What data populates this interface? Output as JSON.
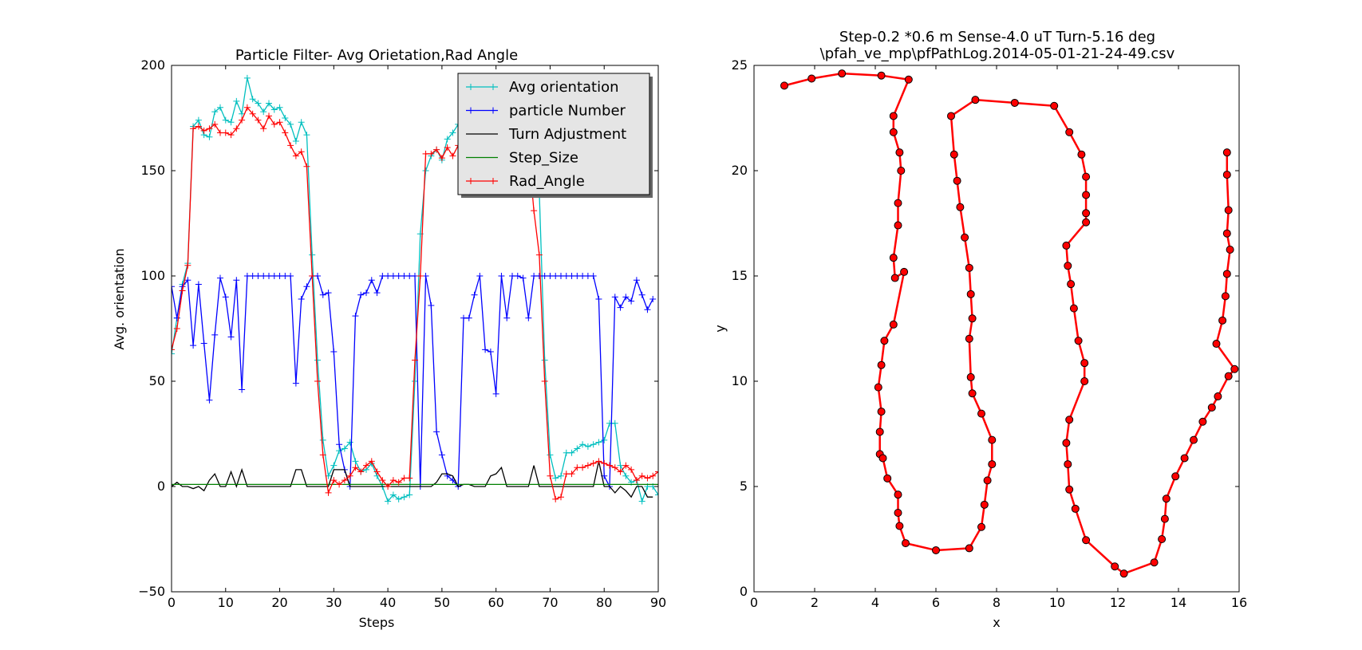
{
  "chart_data": [
    {
      "type": "line",
      "title": "Particle Filter- Avg Orietation,Rad Angle",
      "xlabel": "Steps",
      "ylabel": "Avg. orientation",
      "xlim": [
        0,
        90
      ],
      "ylim": [
        -50,
        200
      ],
      "xticks": [
        "0",
        "10",
        "20",
        "30",
        "40",
        "50",
        "60",
        "70",
        "80",
        "90"
      ],
      "yticks": [
        "−50",
        "0",
        "50",
        "100",
        "150",
        "200"
      ],
      "grid": false,
      "legend": "top-right",
      "series": [
        {
          "name": "Avg orientation",
          "color": "#00bfbf",
          "marker": "+",
          "values": [
            63,
            80,
            96,
            106,
            171,
            174,
            167,
            166,
            178,
            180,
            174,
            173,
            183,
            177,
            194,
            184,
            182,
            178,
            182,
            179,
            180,
            175,
            172,
            164,
            173,
            167,
            110,
            60,
            22,
            5,
            10,
            17,
            18,
            21,
            12,
            7,
            8,
            11,
            5,
            0,
            -7,
            -4,
            -6,
            -5,
            -4,
            50,
            120,
            150,
            157,
            160,
            155,
            165,
            168,
            172,
            178,
            180,
            180,
            180,
            180,
            180,
            180,
            180,
            180,
            180,
            180,
            180,
            175,
            150,
            140,
            60,
            15,
            4,
            5,
            16,
            16,
            18,
            20,
            19,
            20,
            21,
            22,
            30,
            30,
            10,
            5,
            2,
            3,
            -7,
            0,
            0,
            -4
          ]
        },
        {
          "name": "particle Number",
          "color": "#0000ff",
          "marker": "+",
          "values": [
            95,
            80,
            95,
            98,
            67,
            96,
            68,
            41,
            72,
            99,
            90,
            71,
            98,
            46,
            100,
            100,
            100,
            100,
            100,
            100,
            100,
            100,
            100,
            49,
            89,
            95,
            100,
            100,
            91,
            92,
            64,
            20,
            8,
            0,
            81,
            91,
            92,
            98,
            92,
            100,
            100,
            100,
            100,
            100,
            100,
            100,
            0,
            100,
            86,
            26,
            15,
            5,
            3,
            0,
            80,
            80,
            91,
            100,
            65,
            64,
            44,
            100,
            80,
            100,
            100,
            99,
            80,
            100,
            100,
            100,
            100,
            100,
            100,
            100,
            100,
            100,
            100,
            100,
            100,
            89,
            5,
            0,
            90,
            85,
            90,
            88,
            98,
            91,
            84,
            89
          ]
        },
        {
          "name": "Turn Adjustment",
          "color": "#000000",
          "marker": "",
          "values": [
            0,
            2,
            0,
            0,
            -1,
            0,
            -2,
            3,
            6,
            0,
            0,
            7,
            0,
            8,
            0,
            0,
            0,
            0,
            0,
            0,
            0,
            0,
            0,
            8,
            8,
            0,
            0,
            0,
            0,
            0,
            8,
            8,
            8,
            0,
            0,
            0,
            0,
            0,
            0,
            0,
            0,
            0,
            0,
            0,
            0,
            0,
            0,
            0,
            0,
            2,
            6,
            6,
            5,
            0,
            1,
            1,
            0,
            0,
            0,
            5,
            6,
            9,
            0,
            0,
            0,
            0,
            0,
            10,
            0,
            0,
            0,
            0,
            0,
            0,
            0,
            0,
            0,
            0,
            0,
            12,
            0,
            0,
            -3,
            0,
            -2,
            -5,
            0,
            0,
            -5,
            -5
          ]
        },
        {
          "name": "Step_Size",
          "color": "#008000",
          "marker": "",
          "values": [
            1,
            1,
            1,
            1,
            1,
            1,
            1,
            1,
            1,
            1,
            1,
            1,
            1,
            1,
            1,
            1,
            1,
            1,
            1,
            1,
            1,
            1,
            1,
            1,
            1,
            1,
            1,
            1,
            1,
            1,
            1,
            1,
            1,
            1,
            1,
            1,
            1,
            1,
            1,
            1,
            1,
            1,
            1,
            1,
            1,
            1,
            1,
            1,
            1,
            1,
            1,
            1,
            1,
            1,
            1,
            1,
            1,
            1,
            1,
            1,
            1,
            1,
            1,
            1,
            1,
            1,
            1,
            1,
            1,
            1,
            1,
            1,
            1,
            1,
            1,
            1,
            1,
            1,
            1,
            1,
            1,
            1,
            1,
            1,
            1,
            1,
            1,
            1,
            1,
            1,
            1
          ]
        },
        {
          "name": "Rad_Angle",
          "color": "#ff0000",
          "marker": "+",
          "values": [
            65,
            75,
            93,
            105,
            170,
            171,
            169,
            170,
            172,
            168,
            168,
            167,
            170,
            174,
            180,
            177,
            174,
            170,
            176,
            172,
            173,
            168,
            162,
            157,
            159,
            152,
            100,
            50,
            15,
            -3,
            3,
            1,
            3,
            5,
            9,
            7,
            10,
            12,
            7,
            3,
            0,
            3,
            2,
            4,
            4,
            60,
            100,
            158,
            158,
            160,
            156,
            161,
            157,
            162,
            164,
            163,
            163,
            163,
            163,
            163,
            163,
            163,
            163,
            163,
            163,
            163,
            160,
            131,
            110,
            50,
            5,
            -6,
            -5,
            6,
            6,
            9,
            9,
            10,
            11,
            12,
            11,
            10,
            9,
            7,
            10,
            8,
            3,
            5,
            4,
            5,
            7
          ]
        }
      ]
    },
    {
      "type": "line",
      "title": "Step-0.2 *0.6 m  Sense-4.0 uT Turn-5.16 deg",
      "subtitle": "\\pfah_ve_mp\\pfPathLog.2014-05-01-21-24-49.csv",
      "xlabel": "x",
      "ylabel": "y",
      "xlim": [
        0,
        16
      ],
      "ylim": [
        0,
        26
      ],
      "xticks": [
        "0",
        "2",
        "4",
        "6",
        "8",
        "10",
        "12",
        "14",
        "16"
      ],
      "yticks": [
        "0",
        "5",
        "10",
        "15",
        "20",
        "25"
      ],
      "grid": false,
      "series": [
        {
          "color": "#ff0000",
          "marker": "o",
          "points": [
            [
              1.0,
              25.0
            ],
            [
              1.9,
              25.35
            ],
            [
              2.9,
              25.6
            ],
            [
              4.2,
              25.5
            ],
            [
              5.1,
              25.3
            ],
            [
              4.6,
              23.5
            ],
            [
              4.6,
              22.7
            ],
            [
              4.8,
              21.7
            ],
            [
              4.85,
              20.8
            ],
            [
              4.75,
              19.2
            ],
            [
              4.75,
              18.1
            ],
            [
              4.6,
              16.5
            ],
            [
              4.65,
              15.5
            ],
            [
              4.95,
              15.8
            ],
            [
              4.6,
              13.2
            ],
            [
              4.3,
              12.4
            ],
            [
              4.2,
              11.2
            ],
            [
              4.1,
              10.1
            ],
            [
              4.2,
              8.9
            ],
            [
              4.15,
              7.9
            ],
            [
              4.15,
              6.8
            ],
            [
              4.25,
              6.6
            ],
            [
              4.4,
              5.6
            ],
            [
              4.75,
              4.8
            ],
            [
              4.75,
              3.9
            ],
            [
              4.8,
              3.25
            ],
            [
              5.0,
              2.4
            ],
            [
              6.0,
              2.05
            ],
            [
              7.1,
              2.15
            ],
            [
              7.5,
              3.2
            ],
            [
              7.6,
              4.3
            ],
            [
              7.7,
              5.5
            ],
            [
              7.85,
              6.3
            ],
            [
              7.85,
              7.5
            ],
            [
              7.5,
              8.8
            ],
            [
              7.2,
              9.8
            ],
            [
              7.15,
              10.6
            ],
            [
              7.1,
              12.5
            ],
            [
              7.2,
              13.5
            ],
            [
              7.15,
              14.7
            ],
            [
              7.1,
              16.0
            ],
            [
              6.95,
              17.5
            ],
            [
              6.8,
              19.0
            ],
            [
              6.7,
              20.3
            ],
            [
              6.6,
              21.6
            ],
            [
              6.5,
              23.5
            ],
            [
              7.3,
              24.3
            ],
            [
              8.6,
              24.15
            ],
            [
              9.9,
              24.0
            ],
            [
              10.4,
              22.7
            ],
            [
              10.8,
              21.6
            ],
            [
              10.95,
              20.5
            ],
            [
              10.95,
              19.6
            ],
            [
              10.95,
              18.7
            ],
            [
              10.95,
              18.25
            ],
            [
              10.3,
              17.1
            ],
            [
              10.35,
              16.1
            ],
            [
              10.45,
              15.2
            ],
            [
              10.55,
              14.0
            ],
            [
              10.7,
              12.4
            ],
            [
              10.9,
              11.3
            ],
            [
              10.9,
              10.4
            ],
            [
              10.4,
              8.5
            ],
            [
              10.3,
              7.35
            ],
            [
              10.35,
              6.3
            ],
            [
              10.4,
              5.05
            ],
            [
              10.6,
              4.1
            ],
            [
              10.95,
              2.55
            ],
            [
              11.9,
              1.25
            ],
            [
              12.2,
              0.9
            ],
            [
              13.2,
              1.45
            ],
            [
              13.45,
              2.6
            ],
            [
              13.55,
              3.6
            ],
            [
              13.6,
              4.6
            ],
            [
              13.9,
              5.7
            ],
            [
              14.2,
              6.6
            ],
            [
              14.5,
              7.5
            ],
            [
              14.8,
              8.4
            ],
            [
              15.1,
              9.1
            ],
            [
              15.3,
              9.65
            ],
            [
              15.65,
              10.65
            ],
            [
              15.85,
              11.0
            ],
            [
              15.25,
              12.25
            ],
            [
              15.45,
              13.4
            ],
            [
              15.55,
              14.6
            ],
            [
              15.6,
              15.7
            ],
            [
              15.7,
              16.9
            ],
            [
              15.6,
              17.7
            ],
            [
              15.65,
              18.85
            ],
            [
              15.6,
              20.6
            ],
            [
              15.6,
              21.7
            ]
          ]
        }
      ]
    }
  ]
}
